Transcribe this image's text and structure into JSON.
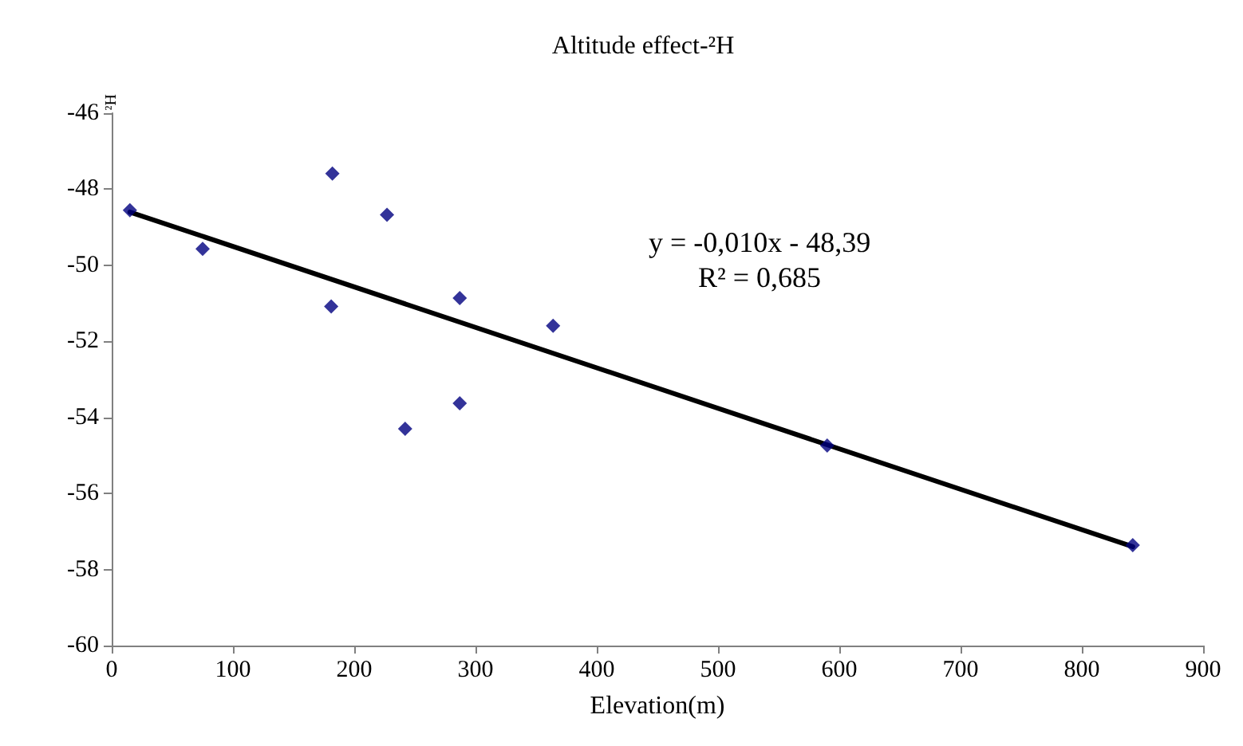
{
  "chart_data": {
    "type": "scatter",
    "title": "Altitude effect-²H",
    "xlabel": "Elevation(m)",
    "ylabel": "²H",
    "marker": "diamond",
    "xlim": [
      0,
      900
    ],
    "xticks": [
      0,
      100,
      200,
      300,
      400,
      500,
      600,
      700,
      800,
      900
    ],
    "ylim": [
      -60,
      -46
    ],
    "yticks": [
      -60,
      -58,
      -56,
      -54,
      -52,
      -50,
      -48,
      -46
    ],
    "series": [
      {
        "color": "#000080",
        "x": [
          15,
          75,
          182,
          181,
          227,
          242,
          287,
          287,
          364,
          590,
          842
        ],
        "values": [
          -48.55,
          -49.57,
          -47.59,
          -51.08,
          -48.67,
          -54.3,
          -50.86,
          -53.63,
          -51.59,
          -54.74,
          -57.36
        ]
      },
      {
        "type": "line",
        "color": "#000000",
        "marker": "none",
        "line_style": "solid",
        "x": [
          15,
          842
        ],
        "values": [
          -48.6,
          -57.4
        ]
      }
    ],
    "annotations": [
      "y = -0,010x - 48,39",
      "R² = 0,685"
    ]
  }
}
